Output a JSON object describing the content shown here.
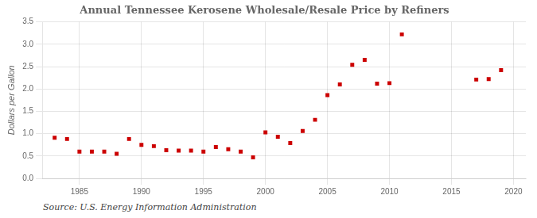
{
  "chart_data": {
    "type": "scatter",
    "title": "Annual Tennessee Kerosene Wholesale/Resale Price by Refiners",
    "ylabel": "Dollars per Gallon",
    "annotation": "Source: U.S. Energy Information Administration",
    "x": [
      1983,
      1984,
      1985,
      1986,
      1987,
      1988,
      1989,
      1990,
      1991,
      1992,
      1993,
      1994,
      1995,
      1996,
      1997,
      1998,
      1999,
      2000,
      2001,
      2002,
      2003,
      2004,
      2005,
      2006,
      2007,
      2008,
      2009,
      2010,
      2011,
      2017,
      2018,
      2019
    ],
    "values": [
      0.91,
      0.88,
      0.6,
      0.6,
      0.6,
      0.55,
      0.88,
      0.75,
      0.72,
      0.63,
      0.62,
      0.62,
      0.6,
      0.7,
      0.65,
      0.6,
      0.47,
      1.03,
      0.93,
      0.79,
      1.06,
      1.31,
      1.86,
      2.1,
      2.54,
      2.65,
      2.12,
      2.13,
      3.22,
      2.21,
      2.22,
      2.42
    ],
    "color": "#cc0000",
    "marker": "square",
    "xlim": [
      1982,
      2021
    ],
    "xticks": [
      1985,
      1990,
      1995,
      2000,
      2005,
      2010,
      2015,
      2020
    ],
    "ylim": [
      0.0,
      3.5
    ],
    "yticks": [
      {
        "value": 0.0,
        "label": "0.0"
      },
      0.5,
      {
        "value": 1.0,
        "label": "1.0"
      },
      1.5,
      {
        "value": 2.0,
        "label": "2.0"
      },
      2.5,
      {
        "value": 3.0,
        "label": "3.0"
      },
      3.5
    ],
    "grid": true
  }
}
